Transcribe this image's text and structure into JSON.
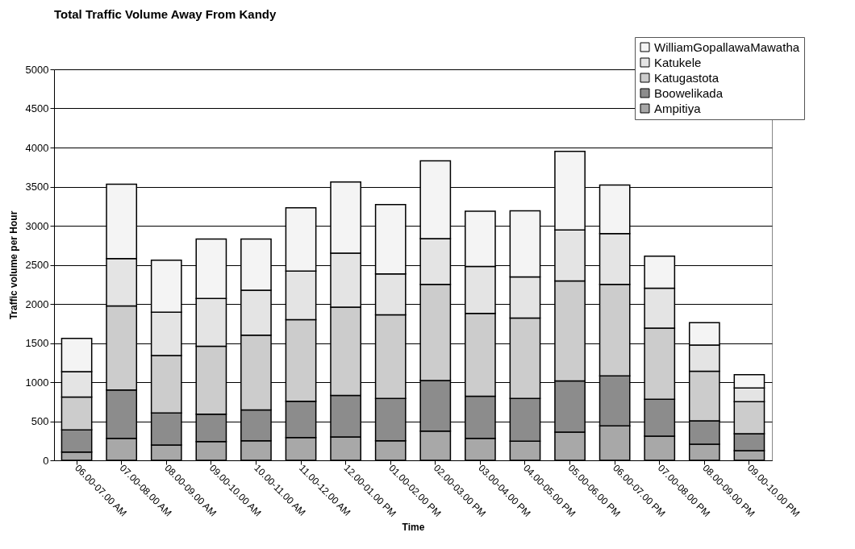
{
  "chart_data": {
    "type": "bar",
    "title": "Total Traffic Volume  Away From Kandy",
    "xlabel": "Time",
    "ylabel": "Traffic volume per Hour",
    "categories": [
      "06.00-07.00 AM",
      "07.00-08.00 AM",
      "08.00-09.00 AM",
      "09.00-10.00 AM",
      "10.00-11.00 AM",
      "11.00-12.00 AM",
      "12.00-01.00 PM",
      "01.00-02.00 PM",
      "02.00-03.00 PM",
      "03.00-04.00 PM",
      "04.00-05.00 PM",
      "05.00-06.00 PM",
      "06.00-07.00 PM",
      "07.00-08.00 PM",
      "08.00-09.00 PM",
      "09.00-10.00 PM"
    ],
    "stacked": true,
    "series": [
      {
        "name": "Ampitiya",
        "color": "#a8a8a8",
        "values": [
          105,
          280,
          195,
          240,
          250,
          290,
          300,
          250,
          375,
          280,
          245,
          360,
          440,
          310,
          205,
          125
        ]
      },
      {
        "name": "Boowelikada",
        "color": "#8c8c8c",
        "values": [
          285,
          620,
          410,
          350,
          395,
          465,
          530,
          540,
          645,
          540,
          545,
          655,
          640,
          470,
          300,
          215
        ]
      },
      {
        "name": "Katugastota",
        "color": "#cccccc",
        "values": [
          420,
          1075,
          735,
          870,
          955,
          1045,
          1130,
          1070,
          1230,
          1060,
          1030,
          1280,
          1170,
          910,
          635,
          410
        ]
      },
      {
        "name": "Katukele",
        "color": "#e4e4e4",
        "values": [
          325,
          605,
          555,
          610,
          575,
          620,
          690,
          525,
          585,
          600,
          525,
          650,
          650,
          510,
          335,
          175
        ]
      },
      {
        "name": "WilliamGopallawaMawatha",
        "color": "#f4f4f4",
        "values": [
          425,
          950,
          665,
          760,
          655,
          810,
          910,
          885,
          995,
          705,
          845,
          1005,
          620,
          410,
          285,
          170
        ]
      }
    ],
    "ylim": [
      0,
      5000
    ],
    "yticks": [
      0,
      500,
      1000,
      1500,
      2000,
      2500,
      3000,
      3500,
      4000,
      4500,
      5000
    ],
    "grid": "y",
    "legend": "top right"
  }
}
